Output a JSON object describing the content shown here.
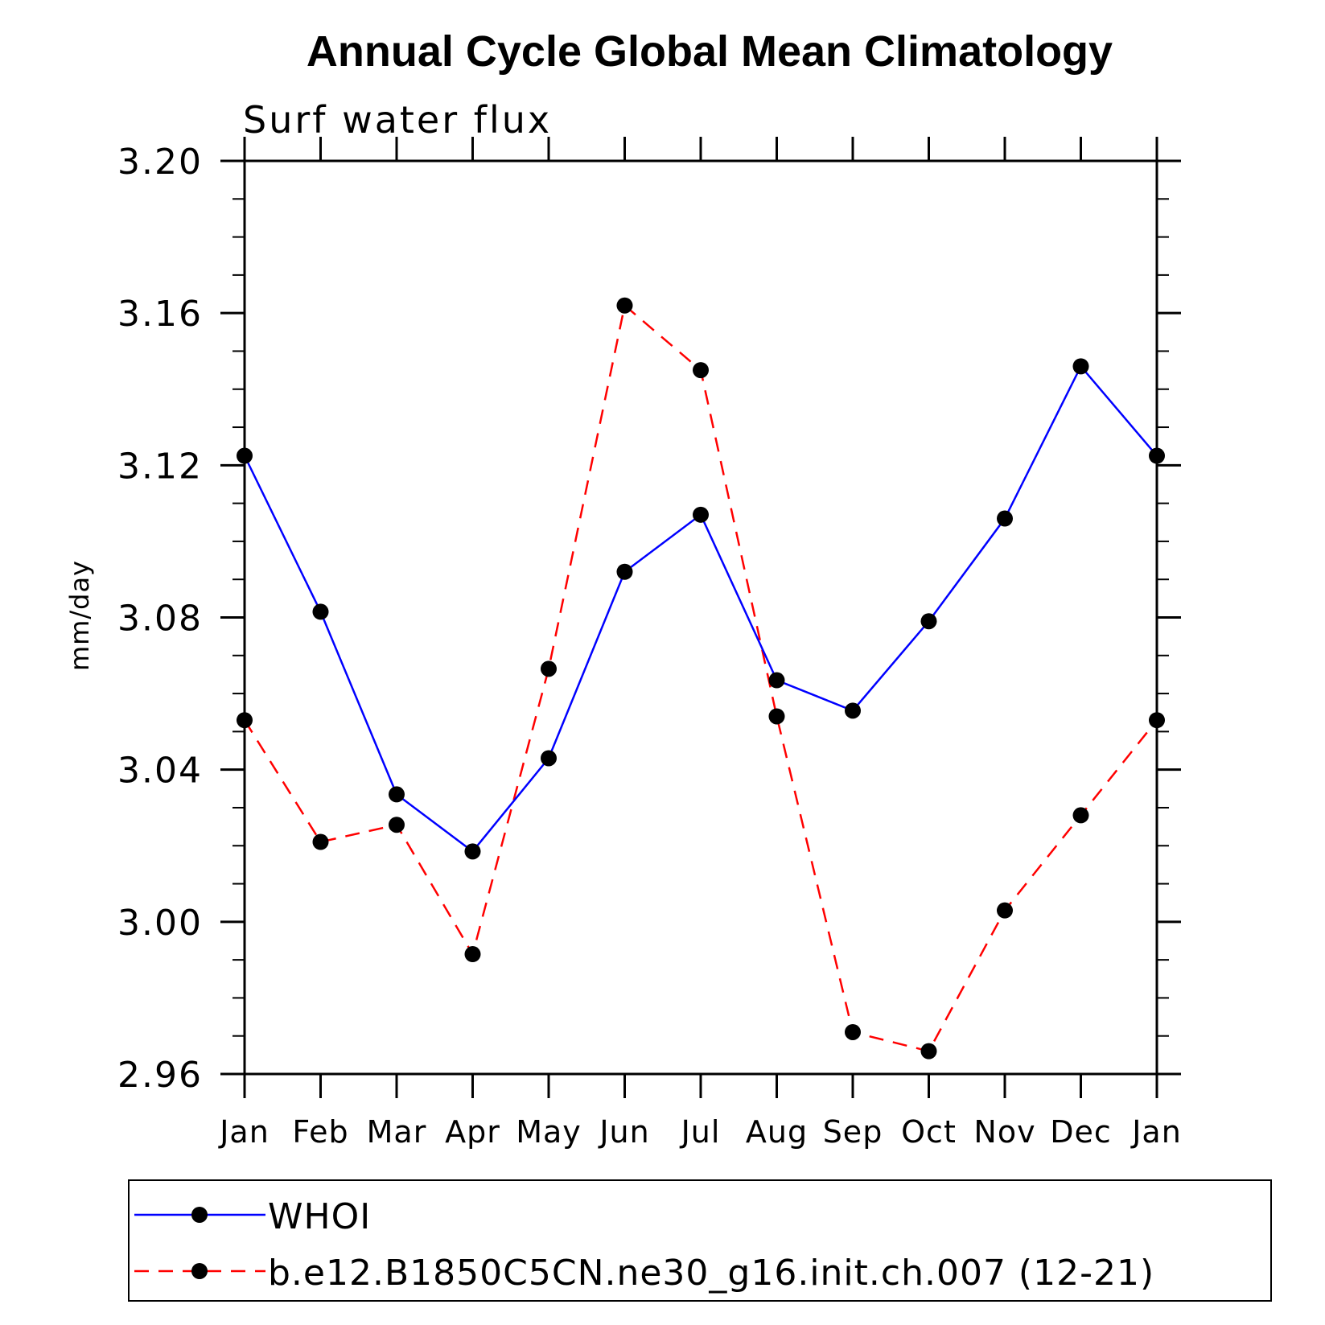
{
  "chart_data": {
    "type": "line",
    "title": "Annual Cycle Global Mean Climatology",
    "subtitle": "Surf water flux",
    "xlabel": "",
    "ylabel": "mm/day",
    "categories": [
      "Jan",
      "Feb",
      "Mar",
      "Apr",
      "May",
      "Jun",
      "Jul",
      "Aug",
      "Sep",
      "Oct",
      "Nov",
      "Dec",
      "Jan"
    ],
    "ylim": [
      2.96,
      3.2
    ],
    "yticks": [
      "2.96",
      "3.00",
      "3.04",
      "3.08",
      "3.12",
      "3.16",
      "3.20"
    ],
    "grid": false,
    "legend_position": "bottom",
    "series": [
      {
        "name": "WHOI",
        "color": "#0000ff",
        "dash": "solid",
        "marker": "filled-circle",
        "values": [
          3.1225,
          3.0815,
          3.0335,
          3.0185,
          3.043,
          3.092,
          3.107,
          3.0635,
          3.0555,
          3.079,
          3.106,
          3.146,
          3.1225
        ]
      },
      {
        "name": "b.e12.B1850C5CN.ne30_g16.init.ch.007 (12-21)",
        "color": "#ff0000",
        "dash": "dashed",
        "marker": "filled-circle",
        "values": [
          3.053,
          3.021,
          3.0255,
          2.9915,
          3.0665,
          3.162,
          3.145,
          3.054,
          2.971,
          2.966,
          3.003,
          3.028,
          3.053
        ]
      }
    ]
  }
}
